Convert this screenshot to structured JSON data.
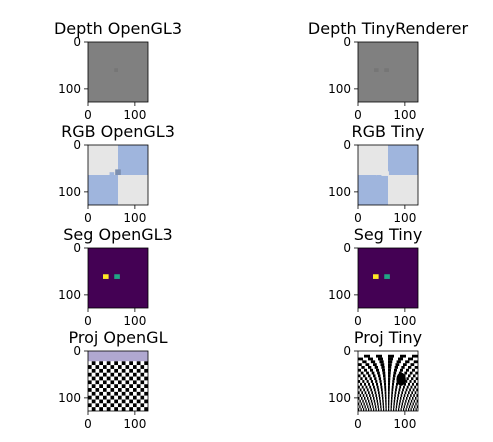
{
  "figure": {
    "background": "#ffffff"
  },
  "chart_data": [
    {
      "type": "heatmap",
      "title": "Depth OpenGL3",
      "image": "depth_opengl3",
      "xticks": [
        0,
        100
      ],
      "yticks": [
        0,
        100
      ],
      "xlim": [
        0,
        128
      ],
      "ylim": [
        128,
        0
      ]
    },
    {
      "type": "heatmap",
      "title": "Depth TinyRenderer",
      "image": "depth_tiny",
      "xticks": [
        0,
        100
      ],
      "yticks": [
        0,
        100
      ],
      "xlim": [
        0,
        128
      ],
      "ylim": [
        128,
        0
      ]
    },
    {
      "type": "heatmap",
      "title": "RGB OpenGL3",
      "image": "rgb_opengl3",
      "xticks": [
        0,
        100
      ],
      "yticks": [
        0,
        100
      ],
      "xlim": [
        0,
        128
      ],
      "ylim": [
        128,
        0
      ]
    },
    {
      "type": "heatmap",
      "title": "RGB Tiny",
      "image": "rgb_tiny",
      "xticks": [
        0,
        100
      ],
      "yticks": [
        0,
        100
      ],
      "xlim": [
        0,
        128
      ],
      "ylim": [
        128,
        0
      ]
    },
    {
      "type": "heatmap",
      "title": "Seg OpenGL3",
      "image": "seg_opengl3",
      "xticks": [
        0,
        100
      ],
      "yticks": [
        0,
        100
      ],
      "xlim": [
        0,
        128
      ],
      "ylim": [
        128,
        0
      ]
    },
    {
      "type": "heatmap",
      "title": "Seg Tiny",
      "image": "seg_tiny",
      "xticks": [
        0,
        100
      ],
      "yticks": [
        0,
        100
      ],
      "xlim": [
        0,
        128
      ],
      "ylim": [
        128,
        0
      ]
    },
    {
      "type": "heatmap",
      "title": "Proj OpenGL",
      "image": "proj_opengl",
      "xticks": [
        0,
        100
      ],
      "yticks": [
        0,
        100
      ],
      "xlim": [
        0,
        128
      ],
      "ylim": [
        128,
        0
      ]
    },
    {
      "type": "heatmap",
      "title": "Proj Tiny",
      "image": "proj_tiny",
      "xticks": [
        0,
        100
      ],
      "yticks": [
        0,
        100
      ],
      "xlim": [
        0,
        128
      ],
      "ylim": [
        128,
        0
      ]
    }
  ],
  "colors": {
    "depth_bg": "#808080",
    "depth_obj": "#767676",
    "rgb_light": "#e6e6e6",
    "rgb_blue": "#9fb5dd",
    "rgb_obj": "#7c8fb0",
    "seg_bg": "#440154",
    "seg_yellow": "#fde725",
    "seg_teal": "#21a585",
    "proj_sky": "#b0a8d0",
    "checker_dark": "#000000",
    "checker_light": "#ffffff"
  }
}
